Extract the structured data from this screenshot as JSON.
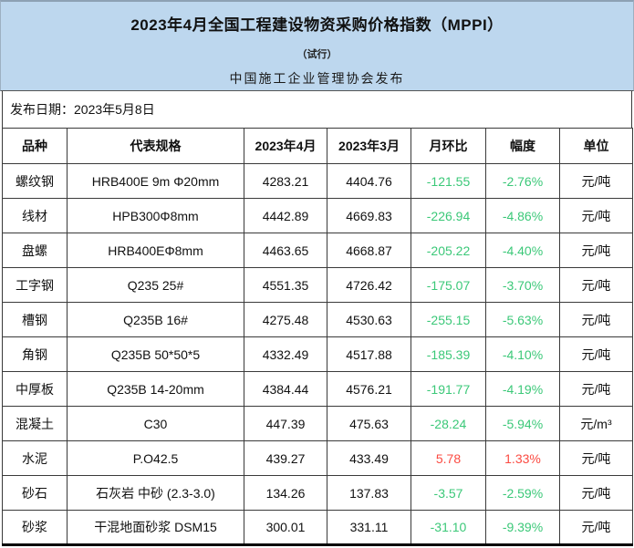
{
  "header": {
    "title": "2023年4月全国工程建设物资采购价格指数（MPPI）",
    "subtitle": "（试行）",
    "publisher": "中国施工企业管理协会发布",
    "bg_color": "#bdd7ee"
  },
  "publish_date": "发布日期：2023年5月8日",
  "table": {
    "columns": [
      "品种",
      "代表规格",
      "2023年4月",
      "2023年3月",
      "月环比",
      "幅度",
      "单位"
    ],
    "colors": {
      "down": "#3bc878",
      "up": "#fb4b42"
    },
    "rows": [
      {
        "variety": "螺纹钢",
        "spec": "HRB400E 9m Φ20mm",
        "apr": "4283.21",
        "mar": "4404.76",
        "mom": "-121.55",
        "pct": "-2.76%",
        "unit": "元/吨"
      },
      {
        "variety": "线材",
        "spec": "HPB300Φ8mm",
        "apr": "4442.89",
        "mar": "4669.83",
        "mom": "-226.94",
        "pct": "-4.86%",
        "unit": "元/吨"
      },
      {
        "variety": "盘螺",
        "spec": "HRB400EΦ8mm",
        "apr": "4463.65",
        "mar": "4668.87",
        "mom": "-205.22",
        "pct": "-4.40%",
        "unit": "元/吨"
      },
      {
        "variety": "工字钢",
        "spec": "Q235 25#",
        "apr": "4551.35",
        "mar": "4726.42",
        "mom": "-175.07",
        "pct": "-3.70%",
        "unit": "元/吨"
      },
      {
        "variety": "槽钢",
        "spec": "Q235B 16#",
        "apr": "4275.48",
        "mar": "4530.63",
        "mom": "-255.15",
        "pct": "-5.63%",
        "unit": "元/吨"
      },
      {
        "variety": "角钢",
        "spec": "Q235B 50*50*5",
        "apr": "4332.49",
        "mar": "4517.88",
        "mom": "-185.39",
        "pct": "-4.10%",
        "unit": "元/吨"
      },
      {
        "variety": "中厚板",
        "spec": "Q235B 14-20mm",
        "apr": "4384.44",
        "mar": "4576.21",
        "mom": "-191.77",
        "pct": "-4.19%",
        "unit": "元/吨"
      },
      {
        "variety": "混凝土",
        "spec": "C30",
        "apr": "447.39",
        "mar": "475.63",
        "mom": "-28.24",
        "pct": "-5.94%",
        "unit": "元/m³"
      },
      {
        "variety": "水泥",
        "spec": "P.O42.5",
        "apr": "439.27",
        "mar": "433.49",
        "mom": "5.78",
        "pct": "1.33%",
        "unit": "元/吨"
      },
      {
        "variety": "砂石",
        "spec": "石灰岩 中砂 (2.3-3.0)",
        "apr": "134.26",
        "mar": "137.83",
        "mom": "-3.57",
        "pct": "-2.59%",
        "unit": "元/吨"
      },
      {
        "variety": "砂浆",
        "spec": "干混地面砂浆 DSM15",
        "apr": "300.01",
        "mar": "331.11",
        "mom": "-31.10",
        "pct": "-9.39%",
        "unit": "元/吨"
      }
    ]
  }
}
